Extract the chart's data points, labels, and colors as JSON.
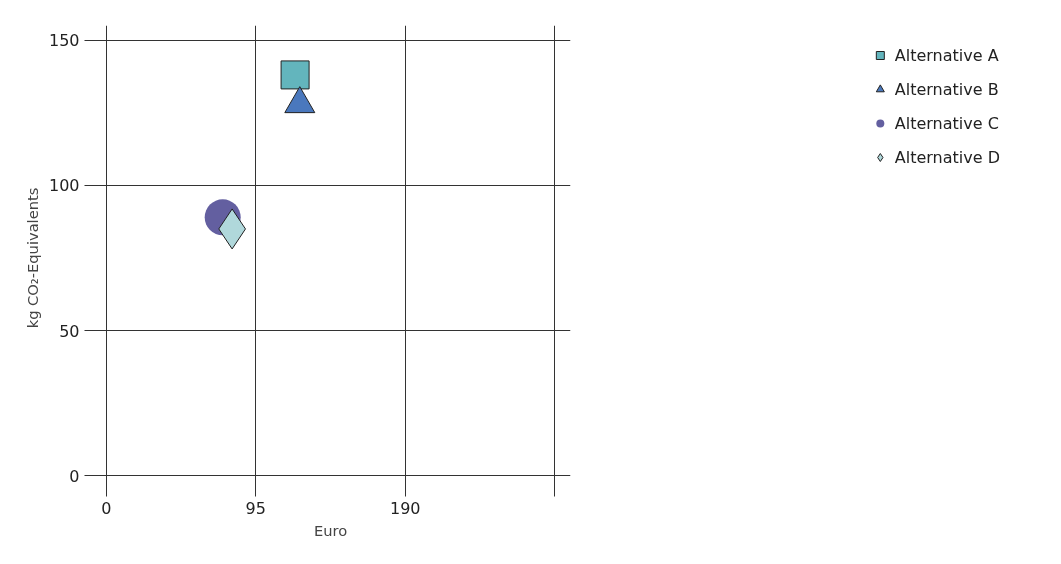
{
  "chart_data": {
    "type": "scatter",
    "xlabel": "Euro",
    "ylabel": "kg CO₂-Equivalents",
    "xlim": [
      -10,
      295
    ],
    "ylim": [
      -5,
      155
    ],
    "xticks": [
      0,
      95,
      190,
      {
        "value": 285,
        "label": null
      }
    ],
    "yticks": [
      0,
      50,
      100,
      150
    ],
    "grid": true,
    "legend": "top right",
    "series": [
      {
        "name": "Alternative A",
        "color": "#63b5bd",
        "marker": "square",
        "x": [
          120
        ],
        "values": [
          138
        ]
      },
      {
        "name": "Alternative B",
        "color": "#4a78bd",
        "marker": "triangle",
        "x": [
          123
        ],
        "values": [
          128
        ]
      },
      {
        "name": "Alternative C",
        "color": "#635fa0",
        "marker": "circle",
        "x": [
          74
        ],
        "values": [
          89
        ]
      },
      {
        "name": "Alternative D",
        "color": "#b0d8db",
        "marker": "diamond",
        "x": [
          80
        ],
        "values": [
          85
        ]
      }
    ]
  }
}
